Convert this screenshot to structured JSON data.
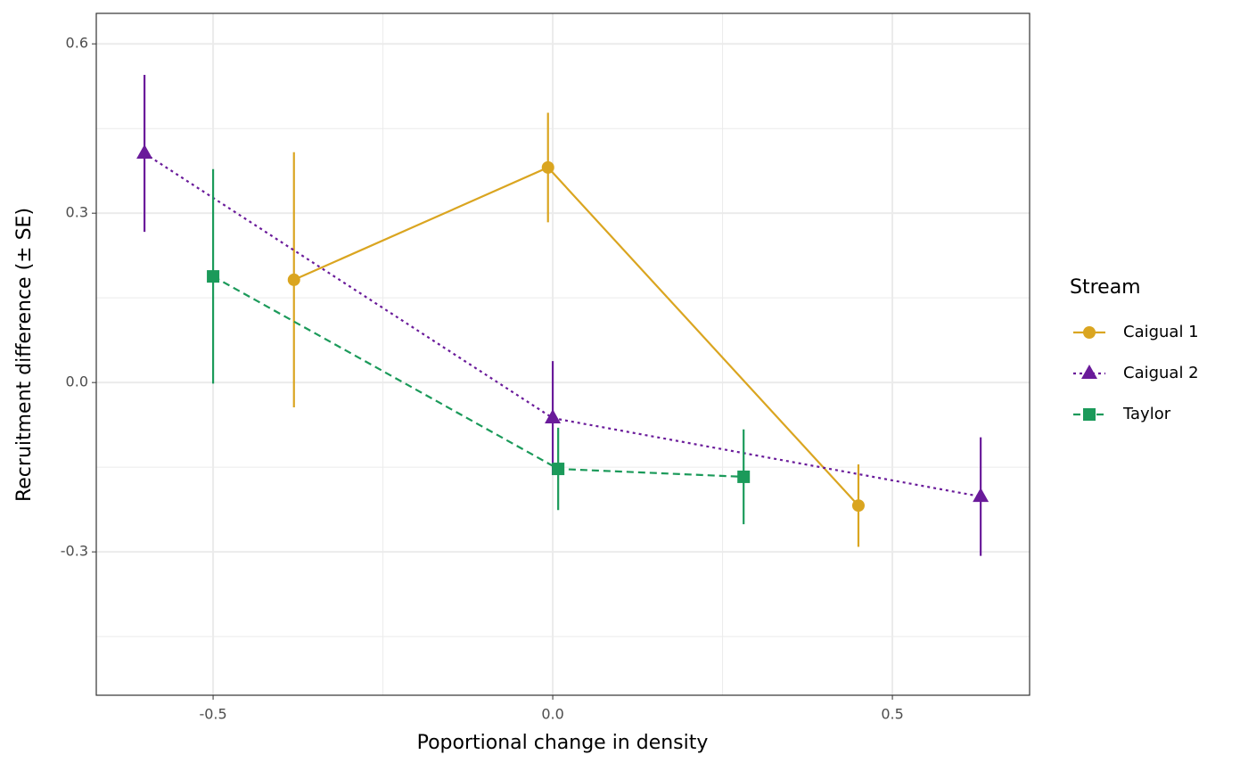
{
  "chart_data": {
    "type": "line",
    "x_label": "Poportional change in density",
    "y_label": "Recruitment difference (± SE)",
    "legend_title": "Stream",
    "legend_position": "right",
    "grid": true,
    "xlim": [
      -0.672,
      0.702
    ],
    "ylim": [
      -0.554,
      0.654
    ],
    "xticks": [
      -0.5,
      {
        "value": 0,
        "label": "0.0"
      },
      0.5
    ],
    "yticks": [
      -0.3,
      {
        "value": 0,
        "label": "0.0"
      },
      0.3,
      0.6
    ],
    "series": [
      {
        "name": "Caigual 1",
        "color": "#daa520",
        "linestyle": "solid",
        "marker": "circle",
        "x": [
          -0.381,
          -0.007,
          0.45
        ],
        "values": [
          0.182,
          0.381,
          -0.218
        ],
        "errors": [
          0.226,
          0.097,
          0.073
        ]
      },
      {
        "name": "Caigual 2",
        "color": "#6a1b9a",
        "linestyle": "dotted",
        "marker": "triangle",
        "x": [
          -0.601,
          0.0,
          0.63
        ],
        "values": [
          0.406,
          -0.063,
          -0.202
        ],
        "errors": [
          0.139,
          0.101,
          0.105
        ]
      },
      {
        "name": "Taylor",
        "color": "#1b9a5a",
        "linestyle": "dashed",
        "marker": "square",
        "x": [
          -0.5,
          0.008,
          0.281
        ],
        "values": [
          0.188,
          -0.153,
          -0.167
        ],
        "errors": [
          0.19,
          0.073,
          0.084
        ]
      }
    ]
  }
}
